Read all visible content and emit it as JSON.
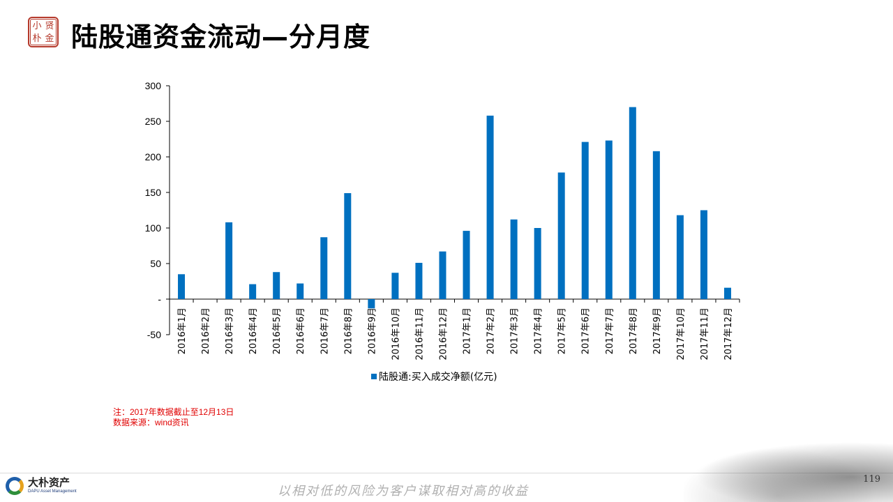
{
  "header": {
    "title": "陆股通资金流动—分月度",
    "seal_chars": [
      "小",
      "贤",
      "朴",
      "金"
    ]
  },
  "chart_data": {
    "type": "bar",
    "categories": [
      "2016年1月",
      "2016年2月",
      "2016年3月",
      "2016年4月",
      "2016年5月",
      "2016年6月",
      "2016年7月",
      "2016年8月",
      "2016年9月",
      "2016年10月",
      "2016年11月",
      "2016年12月",
      "2017年1月",
      "2017年2月",
      "2017年3月",
      "2017年4月",
      "2017年5月",
      "2017年6月",
      "2017年7月",
      "2017年8月",
      "2017年9月",
      "2017年10月",
      "2017年11月",
      "2017年12月"
    ],
    "series": [
      {
        "name": "陆股通:买入成交净额(亿元)",
        "color": "#0070c0",
        "values": [
          35,
          0,
          108,
          21,
          38,
          22,
          87,
          149,
          -13,
          37,
          51,
          67,
          96,
          258,
          112,
          100,
          178,
          221,
          223,
          270,
          208,
          118,
          125,
          16
        ]
      }
    ],
    "ylim": [
      -50,
      300
    ],
    "yticks": [
      -50,
      0,
      50,
      100,
      150,
      200,
      250,
      300
    ],
    "ytick_labels": [
      "-50",
      "-",
      "50",
      "100",
      "150",
      "200",
      "250",
      "300"
    ],
    "legend_position": "bottom",
    "grid": false
  },
  "notes": {
    "line1": "注：2017年数据截止至12月13日",
    "line2": "数据来源：wind资讯"
  },
  "footer": {
    "company_cn": "大朴资产",
    "company_en": "DAPU Asset Management",
    "slogan": "以相对低的风险为客户谋取相对高的收益",
    "page_number": "119"
  }
}
